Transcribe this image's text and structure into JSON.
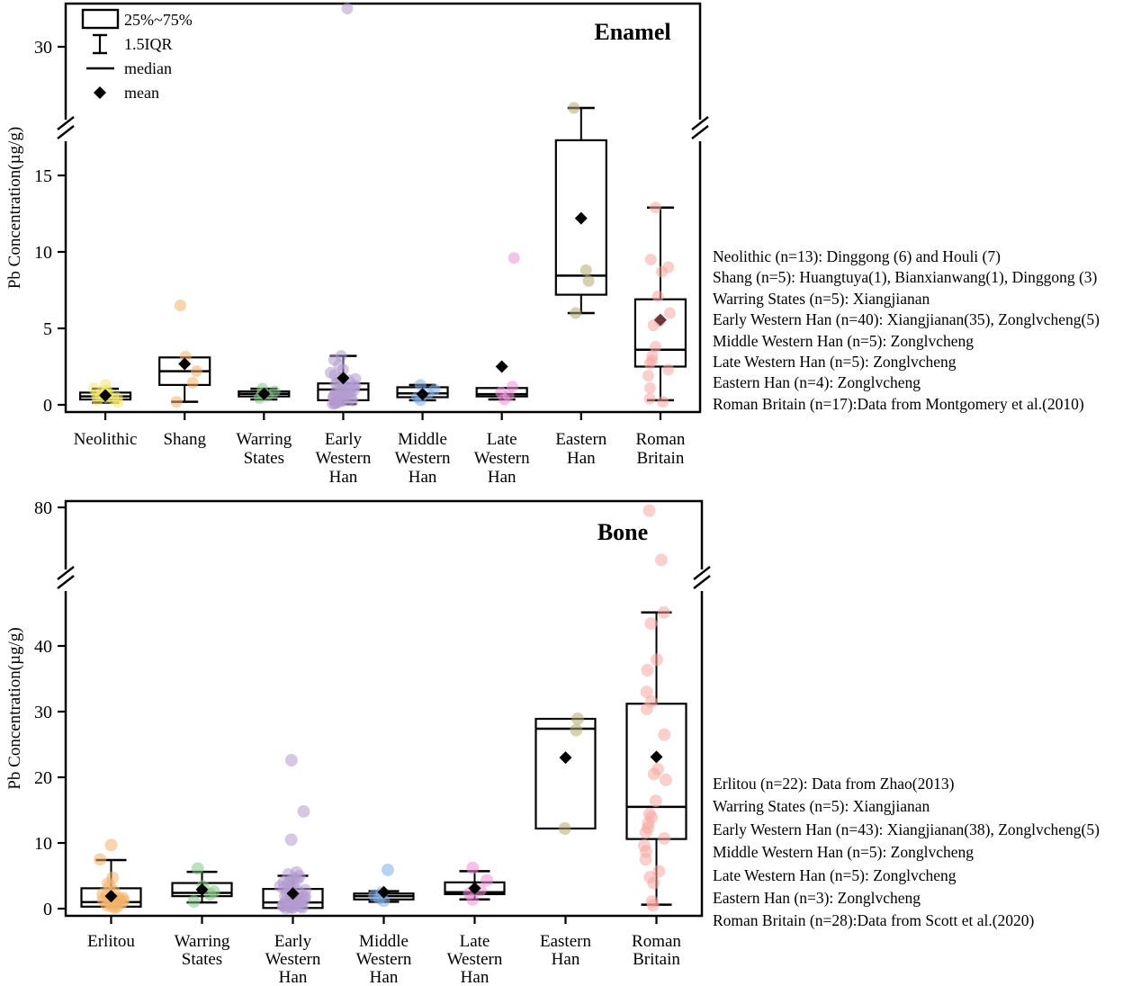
{
  "chart_data": [
    {
      "type": "box",
      "title": "Enamel",
      "ylabel": "Pb Concentration(µg/g)",
      "legend": [
        {
          "glyph": "box",
          "label": "25%~75%"
        },
        {
          "glyph": "whisker",
          "label": "1.5IQR"
        },
        {
          "glyph": "median",
          "label": "median"
        },
        {
          "glyph": "mean",
          "label": "mean"
        }
      ],
      "axis": {
        "broken": true,
        "lower_ticks": [
          0,
          5,
          10,
          15
        ],
        "upper_ticks": [
          30
        ],
        "lower_range": [
          0,
          18
        ],
        "upper_range": [
          24,
          33.5
        ]
      },
      "groups": [
        {
          "label": "Neolithic",
          "label_lines": [
            "Neolithic"
          ],
          "n": 13,
          "color": "#f2e56e",
          "box": {
            "q1": 0.35,
            "median": 0.55,
            "q3": 0.8,
            "whisker_low": 0.15,
            "whisker_high": 1.05,
            "mean": 0.62
          },
          "points": [
            1.3,
            1.05,
            0.95,
            0.85,
            0.75,
            0.7,
            0.62,
            0.58,
            0.5,
            0.45,
            0.4,
            0.3,
            0.18
          ]
        },
        {
          "label": "Shang",
          "label_lines": [
            "Shang"
          ],
          "n": 5,
          "color": "#f3b36a",
          "box": {
            "q1": 1.3,
            "median": 2.2,
            "q3": 3.1,
            "whisker_low": 0.2,
            "whisker_high": 3.2,
            "mean": 2.68
          },
          "points": [
            6.5,
            3.15,
            2.2,
            1.45,
            0.2
          ]
        },
        {
          "label": "Warring States",
          "label_lines": [
            "Warring",
            "States"
          ],
          "n": 5,
          "color": "#82c785",
          "box": {
            "q1": 0.55,
            "median": 0.72,
            "q3": 0.88,
            "whisker_low": 0.35,
            "whisker_high": 1.05,
            "mean": 0.72
          },
          "points": [
            1.05,
            0.88,
            0.75,
            0.6,
            0.45
          ]
        },
        {
          "label": "Early Western Han",
          "label_lines": [
            "Early",
            "Western",
            "Han"
          ],
          "n": 40,
          "color": "#b29bcf",
          "box": {
            "q1": 0.3,
            "median": 1.0,
            "q3": 1.4,
            "whisker_low": 0.05,
            "whisker_high": 3.2,
            "mean": 1.75
          },
          "points": [
            32.5,
            3.2,
            2.95,
            2.6,
            2.3,
            2.1,
            1.95,
            1.8,
            1.7,
            1.6,
            1.5,
            1.45,
            1.4,
            1.3,
            1.25,
            1.2,
            1.15,
            1.1,
            1.0,
            0.95,
            0.9,
            0.85,
            0.8,
            0.75,
            0.7,
            0.65,
            0.6,
            0.55,
            0.5,
            0.45,
            0.4,
            0.35,
            0.3,
            0.28,
            0.25,
            0.2,
            0.15,
            0.12,
            0.08,
            0.05
          ]
        },
        {
          "label": "Middle Western Han",
          "label_lines": [
            "Middle",
            "Western",
            "Han"
          ],
          "n": 5,
          "color": "#84aee9",
          "box": {
            "q1": 0.5,
            "median": 0.75,
            "q3": 1.15,
            "whisker_low": 0.3,
            "whisker_high": 1.3,
            "mean": 0.7
          },
          "points": [
            1.3,
            1.0,
            0.75,
            0.5,
            0.3
          ]
        },
        {
          "label": "Late Western Han",
          "label_lines": [
            "Late",
            "Western",
            "Han"
          ],
          "n": 5,
          "color": "#ee8fd8",
          "box": {
            "q1": 0.55,
            "median": 0.7,
            "q3": 1.1,
            "whisker_low": 0.35,
            "whisker_high": 1.2,
            "mean": 2.5
          },
          "points": [
            9.6,
            1.2,
            0.8,
            0.6,
            0.35
          ]
        },
        {
          "label": "Eastern Han",
          "label_lines": [
            "Eastern",
            "Han"
          ],
          "n": 4,
          "color": "#b3ab72",
          "box": {
            "q1": 7.2,
            "median": 8.45,
            "q3": 17.3,
            "whisker_low": 6.0,
            "whisker_high": 26.0,
            "mean": 12.2
          },
          "points": [
            26.0,
            8.8,
            8.1,
            6.0
          ]
        },
        {
          "label": "Roman Britain",
          "label_lines": [
            "Roman",
            "Britain"
          ],
          "n": 17,
          "color": "#f5a8a2",
          "mean_color": "#6a383c",
          "box": {
            "q1": 2.5,
            "median": 3.6,
            "q3": 6.9,
            "whisker_low": 0.3,
            "whisker_high": 12.9,
            "mean": 5.55
          },
          "points": [
            12.9,
            9.5,
            9.0,
            8.7,
            7.1,
            6.0,
            5.5,
            5.2,
            3.8,
            3.2,
            2.9,
            2.7,
            2.3,
            1.9,
            1.1,
            0.4,
            0.2
          ]
        }
      ],
      "annotations": [
        "Neolithic (n=13): Dinggong (6) and Houli (7)",
        "Shang (n=5): Huangtuya(1), Bianxianwang(1), Dinggong (3)",
        "Warring States (n=5): Xiangjianan",
        "Early Western Han (n=40): Xiangjianan(35), Zonglvcheng(5)",
        "Middle Western Han (n=5): Zonglvcheng",
        "Late Western Han (n=5): Zonglvcheng",
        "Eastern Han (n=4): Zonglvcheng",
        "Roman Britain (n=17):Data from Montgomery et al.(2010)"
      ]
    },
    {
      "type": "box",
      "title": "Bone",
      "ylabel": "Pb Concentration(µg/g)",
      "legend": [],
      "axis": {
        "broken": true,
        "lower_ticks": [
          0,
          10,
          20,
          30,
          40
        ],
        "upper_ticks": [
          80
        ],
        "lower_range": [
          0,
          51
        ],
        "upper_range": [
          70,
          81
        ]
      },
      "groups": [
        {
          "label": "Erlitou",
          "label_lines": [
            "Erlitou"
          ],
          "n": 22,
          "color": "#f3b36a",
          "box": {
            "q1": 0.3,
            "median": 1.0,
            "q3": 3.1,
            "whisker_low": 0.05,
            "whisker_high": 7.4,
            "mean": 1.9
          },
          "points": [
            9.7,
            7.5,
            4.7,
            3.8,
            3.4,
            2.6,
            2.2,
            2.0,
            1.8,
            1.6,
            1.5,
            1.35,
            1.2,
            1.1,
            1.0,
            0.9,
            0.8,
            0.7,
            0.55,
            0.4,
            0.3,
            0.15
          ]
        },
        {
          "label": "Warring States",
          "label_lines": [
            "Warring",
            "States"
          ],
          "n": 5,
          "color": "#82c785",
          "box": {
            "q1": 1.9,
            "median": 2.4,
            "q3": 3.9,
            "whisker_low": 0.95,
            "whisker_high": 5.6,
            "mean": 2.9
          },
          "points": [
            6.1,
            3.4,
            2.6,
            2.2,
            1.1
          ]
        },
        {
          "label": "Early Western Han",
          "label_lines": [
            "Early",
            "Western",
            "Han"
          ],
          "n": 43,
          "color": "#b29bcf",
          "box": {
            "q1": 0.1,
            "median": 0.95,
            "q3": 3.0,
            "whisker_low": 0.02,
            "whisker_high": 5.0,
            "mean": 2.3
          },
          "points": [
            22.6,
            14.8,
            10.5,
            5.5,
            5.2,
            4.9,
            4.6,
            4.4,
            4.2,
            4.0,
            3.8,
            3.6,
            3.4,
            3.2,
            3.0,
            2.8,
            2.6,
            2.4,
            2.2,
            2.0,
            1.9,
            1.8,
            1.7,
            1.6,
            1.5,
            1.4,
            1.3,
            1.2,
            1.1,
            1.0,
            0.9,
            0.8,
            0.7,
            0.6,
            0.5,
            0.45,
            0.4,
            0.35,
            0.3,
            0.25,
            0.2,
            0.15,
            0.1
          ]
        },
        {
          "label": "Middle Western Han",
          "label_lines": [
            "Middle",
            "Western",
            "Han"
          ],
          "n": 5,
          "color": "#84aee9",
          "box": {
            "q1": 1.4,
            "median": 1.9,
            "q3": 2.3,
            "whisker_low": 1.05,
            "whisker_high": 2.65,
            "mean": 2.5
          },
          "points": [
            5.9,
            2.4,
            2.0,
            1.6,
            1.2
          ]
        },
        {
          "label": "Late Western Han",
          "label_lines": [
            "Late",
            "Western",
            "Han"
          ],
          "n": 5,
          "color": "#ee8fd8",
          "box": {
            "q1": 2.2,
            "median": 2.5,
            "q3": 4.0,
            "whisker_low": 1.4,
            "whisker_high": 5.7,
            "mean": 3.1
          },
          "points": [
            6.2,
            4.3,
            2.8,
            2.3,
            1.4
          ]
        },
        {
          "label": "Eastern Han",
          "label_lines": [
            "Eastern",
            "Han"
          ],
          "n": 3,
          "color": "#b3ab72",
          "box": {
            "q1": 12.2,
            "median": 27.4,
            "q3": 28.9,
            "whisker_low": 12.2,
            "whisker_high": 28.9,
            "mean": 23.0
          },
          "points": [
            28.9,
            27.2,
            12.2
          ]
        },
        {
          "label": "Roman Britain",
          "label_lines": [
            "Roman",
            "Britain"
          ],
          "n": 28,
          "color": "#f5a8a2",
          "box": {
            "q1": 10.6,
            "median": 15.5,
            "q3": 31.2,
            "whisker_low": 0.6,
            "whisker_high": 45.1,
            "mean": 23.1
          },
          "points": [
            79.5,
            72.0,
            45.1,
            43.4,
            37.9,
            36.3,
            33.0,
            31.5,
            30.4,
            26.5,
            21.2,
            20.5,
            19.6,
            16.4,
            14.4,
            13.9,
            13.0,
            12.3,
            11.6,
            10.7,
            9.6,
            8.7,
            7.5,
            5.7,
            4.8,
            3.9,
            1.1,
            0.5
          ]
        }
      ],
      "annotations": [
        "Erlitou (n=22): Data from Zhao(2013)",
        "Warring States (n=5): Xiangjianan",
        "Early Western Han (n=43): Xiangjianan(38), Zonglvcheng(5)",
        "Middle Western Han (n=5): Zonglvcheng",
        "Late Western Han (n=5): Zonglvcheng",
        "Eastern Han (n=3): Zonglvcheng",
        "Roman Britain (n=28):Data from Scott et al.(2020)"
      ]
    }
  ]
}
